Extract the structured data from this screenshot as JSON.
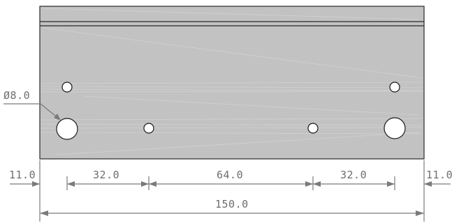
{
  "drawing": {
    "hole_callout": "Ø8.0",
    "dimensions": {
      "left_margin": "11.0",
      "span_1": "32.0",
      "span_2": "64.0",
      "span_3": "32.0",
      "right_margin": "11.0",
      "overall_width": "150.0"
    },
    "colors": {
      "plate_fill": "#c2c2c2",
      "outline": "#2a2a2a",
      "dimension_lines": "#7a7a7a",
      "hole_fill": "#ffffff"
    }
  }
}
